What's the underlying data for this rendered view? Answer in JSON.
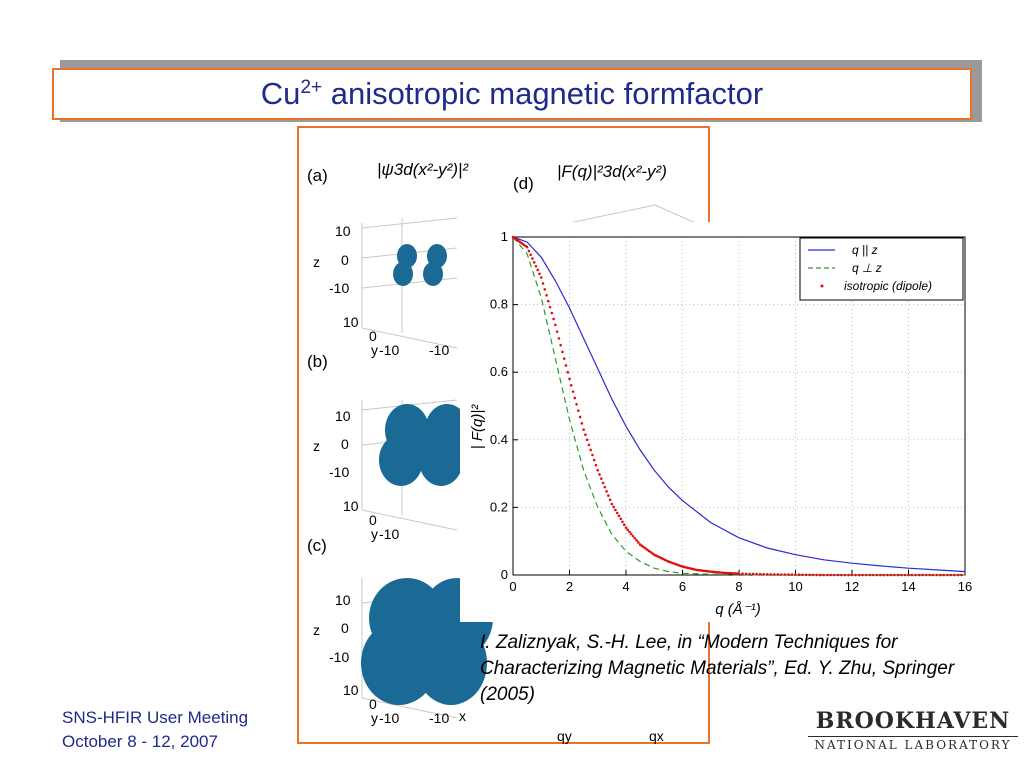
{
  "slide": {
    "title_main": "Cu",
    "title_sup": "2+",
    "title_rest": " anisotropic magnetic formfactor",
    "footer_line1": "SNS-HFIR User Meeting",
    "footer_line2": "October 8 - 12, 2007",
    "citation": "I. Zaliznyak, S.-H. Lee, in “Modern Techniques for Characterizing Magnetic Materials”, Ed. Y. Zhu, Springer (2005)",
    "logo_top": "BROOKHAVEN",
    "logo_bottom": "NATIONAL LABORATORY"
  },
  "figure": {
    "label_a": "(a)",
    "label_b": "(b)",
    "label_c": "(c)",
    "label_d": "(d)",
    "header_psi": "|ψ3d(x²-y²)|²",
    "header_F": "|F(q)|²3d(x²-y²)",
    "panel_ticks": [
      "10",
      "0",
      "-10"
    ],
    "axis_z": "z",
    "axis_y": "y",
    "axis_x": "x",
    "qy_label": "qy",
    "qx_label": "qx",
    "blob_color": "#1b6a95"
  },
  "chart_data": {
    "type": "line",
    "title": "",
    "xlabel": "q (Å⁻¹)",
    "ylabel": "| F(q)|²",
    "xlim": [
      0,
      16
    ],
    "ylim": [
      0,
      1
    ],
    "xticks": [
      0,
      2,
      4,
      6,
      8,
      10,
      12,
      14,
      16
    ],
    "yticks": [
      0,
      0.2,
      0.4,
      0.6,
      0.8,
      1
    ],
    "grid": true,
    "legend_position": "top-right",
    "series": [
      {
        "name": "q || z",
        "style": "solid",
        "color": "#2a2ad6",
        "x": [
          0,
          0.5,
          1,
          1.5,
          2,
          2.5,
          3,
          3.5,
          4,
          4.5,
          5,
          5.5,
          6,
          7,
          8,
          9,
          10,
          11,
          12,
          13,
          14,
          15,
          16
        ],
        "y": [
          1,
          0.985,
          0.94,
          0.87,
          0.79,
          0.7,
          0.61,
          0.52,
          0.44,
          0.37,
          0.31,
          0.26,
          0.22,
          0.155,
          0.11,
          0.08,
          0.06,
          0.045,
          0.035,
          0.027,
          0.02,
          0.015,
          0.01
        ]
      },
      {
        "name": "q ⊥ z",
        "style": "dashed",
        "color": "#2e9a2e",
        "x": [
          0,
          0.5,
          1,
          1.5,
          2,
          2.5,
          3,
          3.5,
          4,
          4.5,
          5,
          5.5,
          6,
          7,
          8,
          9,
          10,
          12,
          14,
          16
        ],
        "y": [
          1,
          0.95,
          0.82,
          0.64,
          0.46,
          0.31,
          0.2,
          0.12,
          0.07,
          0.04,
          0.02,
          0.01,
          0.005,
          0.002,
          0.001,
          0,
          0,
          0,
          0,
          0
        ]
      },
      {
        "name": "isotropic (dipole)",
        "style": "dotted",
        "color": "#e01010",
        "x": [
          0,
          0.5,
          1,
          1.5,
          2,
          2.5,
          3,
          3.5,
          4,
          4.5,
          5,
          5.5,
          6,
          6.5,
          7,
          7.5,
          8,
          9,
          10,
          11,
          12,
          13,
          14,
          15,
          16
        ],
        "y": [
          1,
          0.97,
          0.88,
          0.74,
          0.58,
          0.43,
          0.31,
          0.21,
          0.14,
          0.09,
          0.06,
          0.04,
          0.025,
          0.015,
          0.01,
          0.006,
          0.004,
          0.002,
          0.001,
          0,
          0,
          0,
          0,
          0,
          0
        ]
      }
    ]
  }
}
